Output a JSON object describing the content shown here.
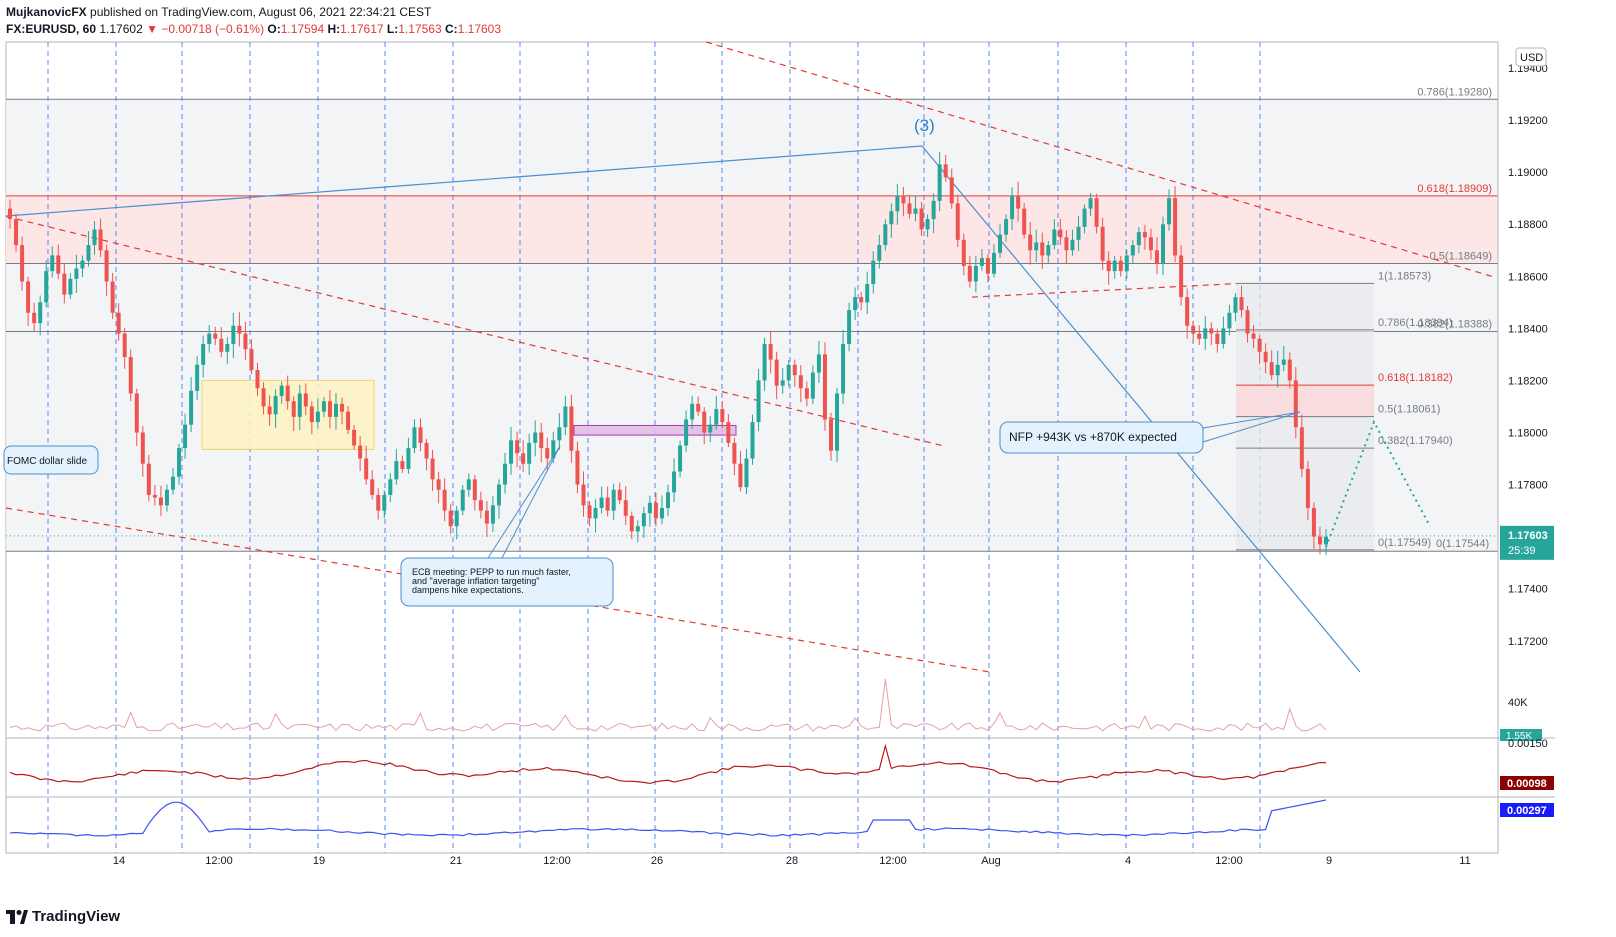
{
  "header": {
    "author": "MujkanovicFX",
    "published": "published on TradingView.com, August 06, 2021 22:34:21 CEST",
    "symbol": "FX:EURUSD, 60",
    "last": "1.17602",
    "change": "▼ −0.00718 (−0.61%)",
    "o_label": "O:",
    "o": "1.17594",
    "h_label": "H:",
    "h": "1.17617",
    "l_label": "L:",
    "l": "1.17563",
    "c_label": "C:",
    "c": "1.17603"
  },
  "footer": {
    "brand": "TradingView"
  },
  "colors": {
    "up": "#26a69a",
    "down": "#ef5350",
    "fib_red": "#e53935",
    "blue": "#2196f3",
    "macd_red": "#b71c1c",
    "macd_blue": "#3f51f5"
  },
  "chart_data": {
    "type": "candlestick",
    "currency": "USD",
    "y_ticks": [
      "1.19400",
      "1.19200",
      "1.19000",
      "1.18800",
      "1.18600",
      "1.18400",
      "1.18200",
      "1.18000",
      "1.17800",
      "1.17600",
      "1.17400",
      "1.17200"
    ],
    "ylim": [
      1.1708,
      1.195
    ],
    "x_ticks": [
      "14",
      "12:00",
      "19",
      "21",
      "12:00",
      "26",
      "28",
      "12:00",
      "Aug",
      "4",
      "12:00",
      "9",
      "11"
    ],
    "price_label": {
      "value": "1.17603",
      "countdown": "25:39"
    },
    "volume_axis": "40K",
    "volume_label": "1.55K",
    "macd_axis": "0.00150",
    "macd_label": "0.00098",
    "indicator2_label": "0.00297",
    "fib_levels_large": [
      {
        "label": "0.786(1.19280)",
        "value": 1.1928
      },
      {
        "label": "0.618(1.18909)",
        "value": 1.18909
      },
      {
        "label": "0.5(1.18649)",
        "value": 1.18649
      },
      {
        "label": "0.382(1.18388)",
        "value": 1.18388
      },
      {
        "label": "0(1.17544)",
        "value": 1.17544
      }
    ],
    "fib_levels_small": [
      {
        "label": "1(1.18573)",
        "value": 1.18573
      },
      {
        "label": "0.786(1.18394)",
        "value": 1.18394
      },
      {
        "label": "0.618(1.18182)",
        "value": 1.18182
      },
      {
        "label": "0.5(1.18061)",
        "value": 1.18061
      },
      {
        "label": "0.382(1.17940)",
        "value": 1.1794
      },
      {
        "label": "0(1.17549)",
        "value": 1.17549
      }
    ],
    "annotations": {
      "wave": "(3)",
      "fomc": "FOMC dollar slide",
      "nfp": "NFP +943K vs +870K expected",
      "ecb": [
        "ECB meeting: PEPP to run much faster,",
        "and \"average inflation targeting\"",
        "dampens hike expectations."
      ]
    },
    "close_path": [
      1.1882,
      1.1872,
      1.1858,
      1.1846,
      1.1842,
      1.185,
      1.1862,
      1.1868,
      1.1861,
      1.1853,
      1.1859,
      1.1863,
      1.1866,
      1.1872,
      1.1878,
      1.187,
      1.1858,
      1.1846,
      1.1838,
      1.1829,
      1.1815,
      1.18,
      1.1788,
      1.1776,
      1.1775,
      1.1772,
      1.1778,
      1.1783,
      1.1794,
      1.1803,
      1.1816,
      1.1826,
      1.1834,
      1.1838,
      1.1836,
      1.1831,
      1.1834,
      1.1841,
      1.1838,
      1.1832,
      1.1824,
      1.1817,
      1.181,
      1.1807,
      1.1814,
      1.1818,
      1.1812,
      1.1806,
      1.1815,
      1.181,
      1.1804,
      1.1808,
      1.1812,
      1.1806,
      1.1811,
      1.1808,
      1.1801,
      1.1795,
      1.179,
      1.1782,
      1.1776,
      1.177,
      1.1776,
      1.1782,
      1.1789,
      1.1786,
      1.1794,
      1.1802,
      1.1796,
      1.179,
      1.1782,
      1.1778,
      1.177,
      1.1764,
      1.177,
      1.1778,
      1.1782,
      1.1774,
      1.177,
      1.1765,
      1.1772,
      1.178,
      1.1788,
      1.1797,
      1.1792,
      1.1788,
      1.1796,
      1.18,
      1.1794,
      1.179,
      1.1797,
      1.1802,
      1.181,
      1.1793,
      1.178,
      1.1772,
      1.1767,
      1.1771,
      1.1775,
      1.177,
      1.1778,
      1.1774,
      1.1768,
      1.1762,
      1.1764,
      1.1769,
      1.1773,
      1.1767,
      1.1771,
      1.1777,
      1.1785,
      1.1795,
      1.1805,
      1.1811,
      1.1808,
      1.18,
      1.1803,
      1.1809,
      1.1804,
      1.1796,
      1.1788,
      1.1779,
      1.179,
      1.1804,
      1.182,
      1.1834,
      1.1828,
      1.1818,
      1.182,
      1.1826,
      1.1822,
      1.1817,
      1.1813,
      1.1823,
      1.183,
      1.1805,
      1.1793,
      1.1815,
      1.1834,
      1.1847,
      1.1852,
      1.185,
      1.1857,
      1.1866,
      1.1872,
      1.188,
      1.1885,
      1.1891,
      1.1888,
      1.1884,
      1.1886,
      1.1878,
      1.1882,
      1.1889,
      1.1903,
      1.1898,
      1.1888,
      1.1874,
      1.1864,
      1.1858,
      1.1864,
      1.1867,
      1.1861,
      1.1869,
      1.1876,
      1.1882,
      1.1891,
      1.1886,
      1.1876,
      1.187,
      1.1873,
      1.1868,
      1.1872,
      1.1878,
      1.1875,
      1.187,
      1.1874,
      1.1879,
      1.1886,
      1.189,
      1.1879,
      1.1866,
      1.1862,
      1.1866,
      1.1862,
      1.1868,
      1.1872,
      1.1877,
      1.1875,
      1.187,
      1.1865,
      1.188,
      1.189,
      1.1868,
      1.1852,
      1.1841,
      1.1838,
      1.1836,
      1.184,
      1.1838,
      1.1834,
      1.184,
      1.1846,
      1.1852,
      1.1847,
      1.1838,
      1.1836,
      1.1831,
      1.1827,
      1.1822,
      1.1826,
      1.1828,
      1.182,
      1.1802,
      1.1786,
      1.1771,
      1.176,
      1.1757,
      1.176
    ],
    "projection": [
      [
        1.1756,
        0
      ],
      [
        1.1804,
        1
      ],
      [
        1.1764,
        2
      ]
    ],
    "volume": {
      "peak_label": "40K"
    }
  }
}
